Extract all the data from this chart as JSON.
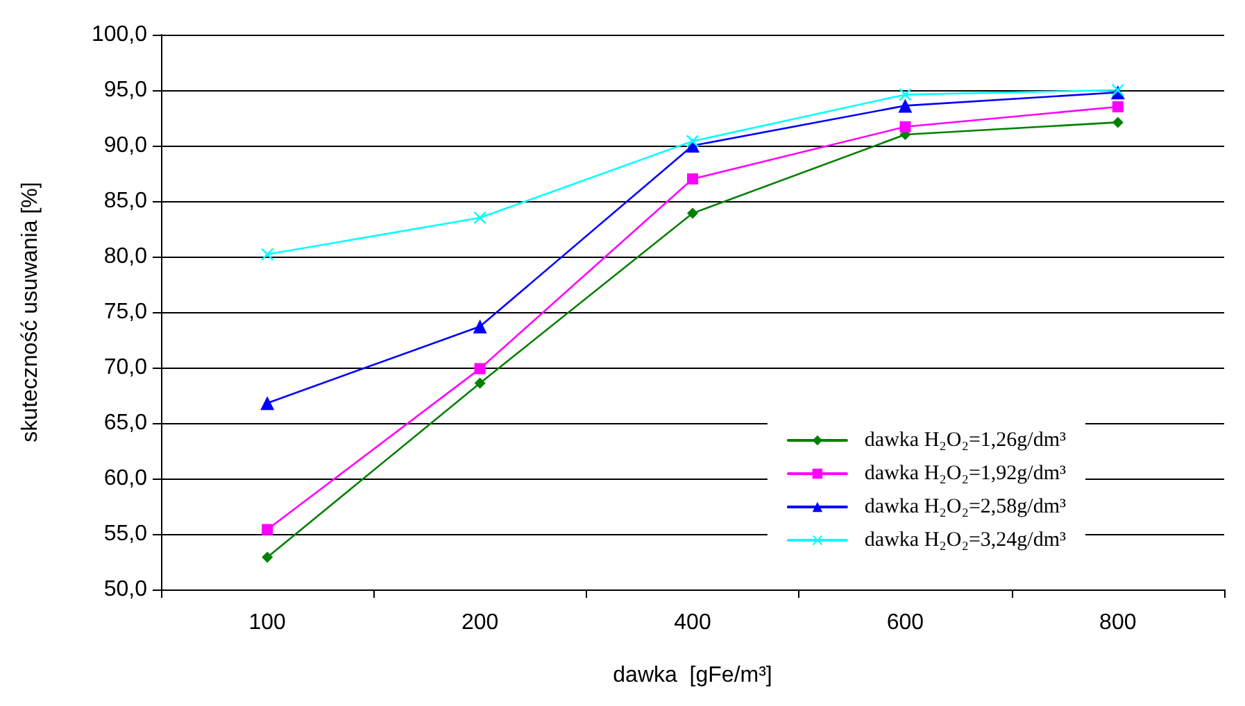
{
  "chart_data": {
    "type": "line",
    "xlabel": "dawka  [gFe/m³]",
    "ylabel": "skuteczność usuwania [%]",
    "categories": [
      "100",
      "200",
      "400",
      "600",
      "800"
    ],
    "ylim": [
      50,
      100
    ],
    "yticks": [
      {
        "value": 50,
        "label": "50,0"
      },
      {
        "value": 55,
        "label": "55,0"
      },
      {
        "value": 60,
        "label": "60,0"
      },
      {
        "value": 65,
        "label": "65,0"
      },
      {
        "value": 70,
        "label": "70,0"
      },
      {
        "value": 75,
        "label": "75,0"
      },
      {
        "value": 80,
        "label": "80,0"
      },
      {
        "value": 85,
        "label": "85,0"
      },
      {
        "value": 90,
        "label": "90,0"
      },
      {
        "value": 95,
        "label": "95,0"
      },
      {
        "value": 100,
        "label": "100,0"
      }
    ],
    "grid": "y",
    "legend": "bottom right",
    "line_style": "solid",
    "series": [
      {
        "name": "dawka H₂O₂=1,26g/dm³",
        "color": "#008000",
        "marker": "diamond",
        "values": [
          52.9,
          68.6,
          83.9,
          91.0,
          92.1
        ]
      },
      {
        "name": "dawka H₂O₂=1,92g/dm³",
        "color": "#ff00ff",
        "marker": "square",
        "values": [
          55.4,
          69.9,
          87.0,
          91.7,
          93.5
        ]
      },
      {
        "name": "dawka H₂O₂=2,58g/dm³",
        "color": "#0000ff",
        "marker": "triangle",
        "values": [
          66.8,
          73.7,
          90.0,
          93.6,
          94.8
        ]
      },
      {
        "name": "dawka H₂O₂=3,24g/dm³",
        "color": "#00ffff",
        "marker": "cross",
        "values": [
          80.2,
          83.5,
          90.4,
          94.6,
          95.0
        ]
      }
    ]
  }
}
